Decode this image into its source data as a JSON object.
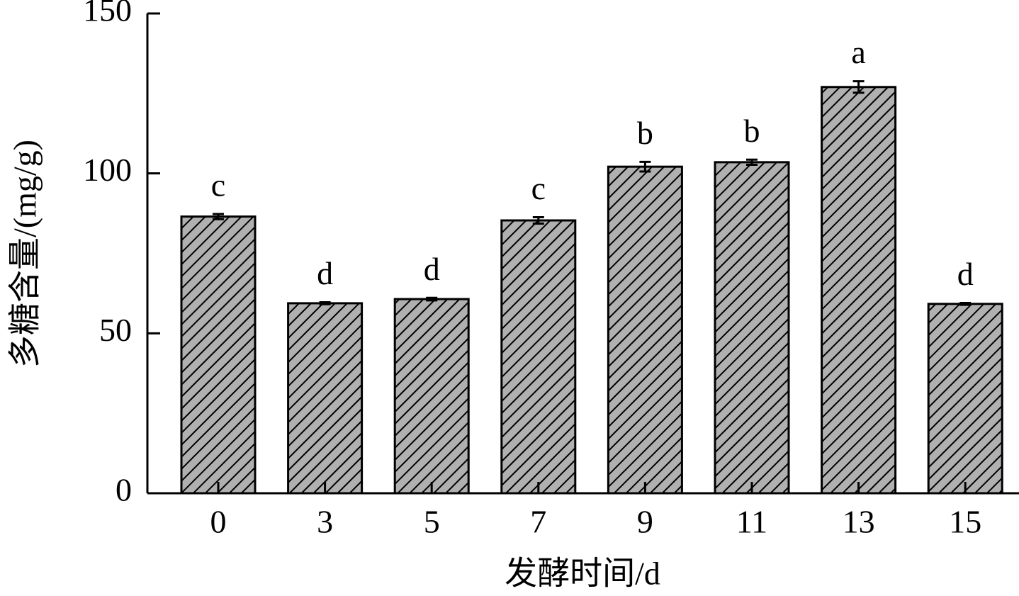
{
  "chart_data": {
    "type": "bar",
    "xlabel": "发酵时间/d",
    "ylabel": "多糖含量/(mg/g)",
    "categories": [
      "0",
      "3",
      "5",
      "7",
      "9",
      "11",
      "13",
      "15"
    ],
    "values": [
      86.5,
      59.4,
      60.7,
      85.3,
      102.1,
      103.5,
      127,
      59.2
    ],
    "errors": [
      0.8,
      0.3,
      0.4,
      1,
      1.5,
      0.8,
      1.8,
      0.3
    ],
    "significance": [
      "c",
      "d",
      "d",
      "c",
      "b",
      "b",
      "a",
      "d"
    ],
    "color": "#b0b0b0",
    "ylim": [
      0,
      150
    ],
    "yticks": [
      0,
      50,
      100,
      150
    ]
  }
}
